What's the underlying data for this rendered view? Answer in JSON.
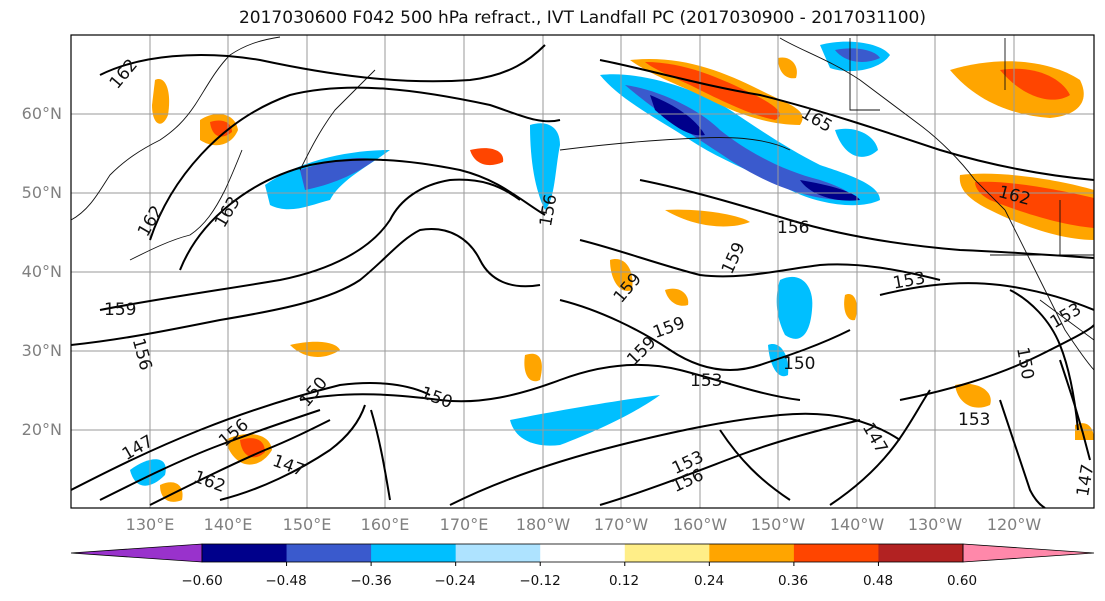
{
  "title": "2017030600 F042 500 hPa refract., IVT Landfall PC (2017030900 - 2017031100)",
  "latitude_labels": [
    "60°N",
    "50°N",
    "40°N",
    "30°N",
    "20°N"
  ],
  "longitude_labels": [
    "130°E",
    "140°E",
    "150°E",
    "160°E",
    "170°E",
    "180°W",
    "170°W",
    "160°W",
    "150°W",
    "140°W",
    "130°W",
    "120°W"
  ],
  "contour_labels": [
    "162",
    "165",
    "162",
    "163",
    "162",
    "159",
    "156",
    "156",
    "156",
    "159",
    "159",
    "159",
    "159",
    "153",
    "153",
    "150",
    "150",
    "150",
    "147",
    "147",
    "147",
    "156",
    "153",
    "156",
    "162",
    "153",
    "150",
    "153",
    "147"
  ],
  "colorbar": {
    "tick_labels": [
      "−0.60",
      "−0.48",
      "−0.36",
      "−0.24",
      "−0.12",
      "0.12",
      "0.24",
      "0.36",
      "0.48",
      "0.60"
    ],
    "colors": [
      "#9932CC",
      "#00008B",
      "#3A5ACD",
      "#00BFFF",
      "#AEE3FF",
      "#FFFFFF",
      "#FFEE88",
      "#FFA500",
      "#FF4500",
      "#B22222",
      "#FF88AA"
    ]
  }
}
